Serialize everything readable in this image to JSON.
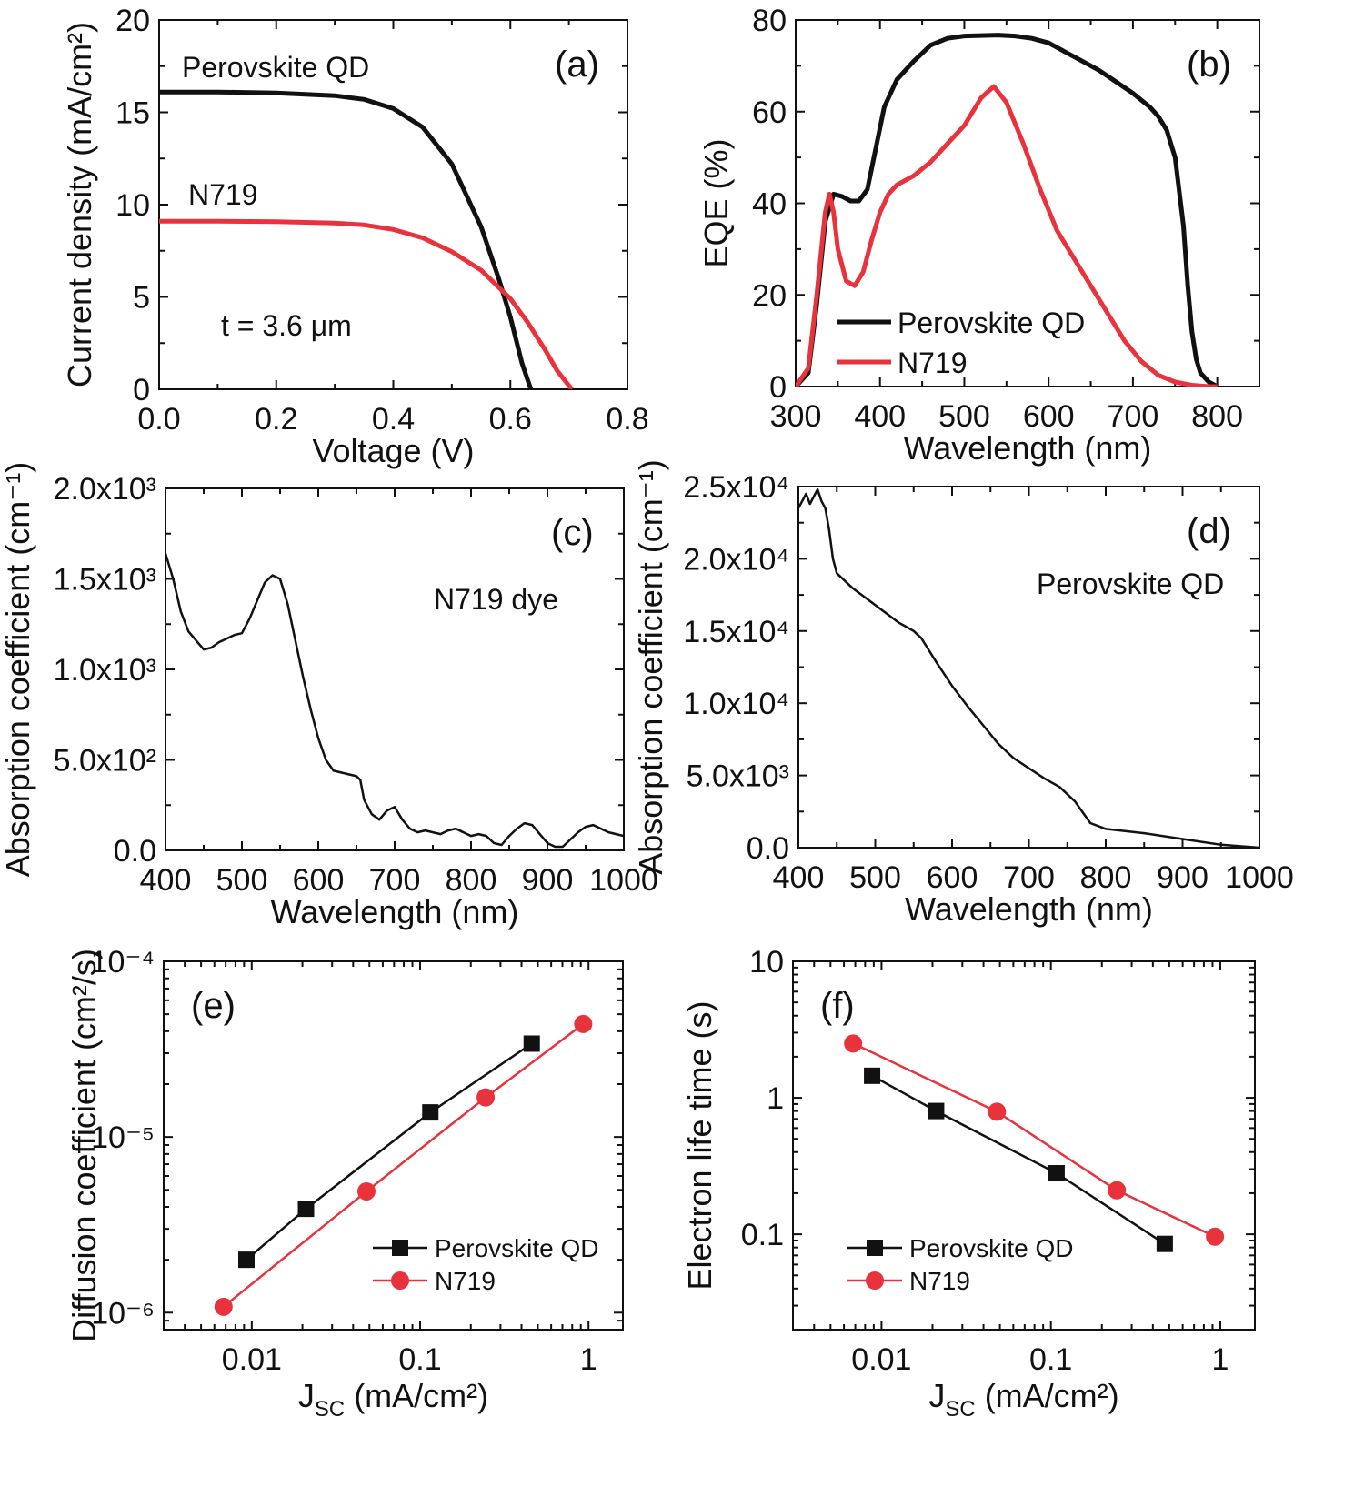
{
  "colors": {
    "black": "#111111",
    "red": "#e8333c",
    "frame": "#111111"
  },
  "chart_data": [
    {
      "id": "a",
      "type": "line",
      "panel_label": "(a)",
      "xlabel": "Voltage (V)",
      "ylabel": "Current density (mA/cm²)",
      "xlim": [
        0,
        0.8
      ],
      "ylim": [
        0,
        20
      ],
      "xticks": [
        "0.0",
        "0.2",
        "0.4",
        "0.6",
        "0.8"
      ],
      "yticks": [
        "0",
        "5",
        "10",
        "15",
        "20"
      ],
      "annotation": "t = 3.6 μm",
      "series": [
        {
          "name": "Perovskite QD",
          "color": "black",
          "x": [
            0,
            0.1,
            0.2,
            0.3,
            0.35,
            0.4,
            0.45,
            0.5,
            0.55,
            0.58,
            0.6,
            0.62,
            0.635
          ],
          "y": [
            16.1,
            16.1,
            16.05,
            15.9,
            15.7,
            15.2,
            14.2,
            12.2,
            8.8,
            6.0,
            3.9,
            1.4,
            0
          ]
        },
        {
          "name": "N719",
          "color": "red",
          "x": [
            0,
            0.1,
            0.2,
            0.3,
            0.35,
            0.4,
            0.45,
            0.5,
            0.55,
            0.6,
            0.63,
            0.66,
            0.68,
            0.705
          ],
          "y": [
            9.1,
            9.1,
            9.08,
            9.0,
            8.9,
            8.65,
            8.2,
            7.45,
            6.45,
            4.9,
            3.6,
            2.1,
            1.0,
            0
          ]
        }
      ]
    },
    {
      "id": "b",
      "type": "line",
      "panel_label": "(b)",
      "xlabel": "Wavelength (nm)",
      "ylabel": "EQE (%)",
      "xlim": [
        300,
        850
      ],
      "ylim": [
        0,
        80
      ],
      "xticks": [
        "300",
        "400",
        "500",
        "600",
        "700",
        "800"
      ],
      "yticks": [
        "0",
        "20",
        "40",
        "60",
        "80"
      ],
      "series": [
        {
          "name": "Perovskite QD",
          "color": "black",
          "x": [
            300,
            315,
            325,
            335,
            345,
            355,
            365,
            375,
            385,
            395,
            405,
            420,
            440,
            460,
            480,
            500,
            520,
            540,
            560,
            580,
            600,
            620,
            640,
            660,
            680,
            700,
            720,
            730,
            740,
            750,
            760,
            765,
            770,
            775,
            780,
            790,
            800
          ],
          "y": [
            0,
            3,
            18,
            36,
            42,
            41.5,
            40.5,
            40.5,
            43,
            52,
            61,
            67,
            71,
            74.5,
            76,
            76.5,
            76.6,
            76.7,
            76.5,
            76,
            75,
            73,
            71,
            69,
            66.5,
            64,
            61,
            59,
            56,
            50,
            35,
            22,
            12,
            6,
            3,
            1,
            0
          ]
        },
        {
          "name": "N719",
          "color": "red",
          "x": [
            300,
            315,
            325,
            335,
            340,
            345,
            350,
            360,
            370,
            380,
            390,
            400,
            410,
            420,
            440,
            460,
            480,
            500,
            520,
            535,
            550,
            570,
            590,
            610,
            630,
            650,
            670,
            690,
            710,
            730,
            750,
            770,
            790,
            800
          ],
          "y": [
            0,
            4,
            20,
            38,
            42,
            38,
            30,
            23,
            22,
            25,
            32,
            38,
            42,
            44,
            46,
            49,
            53,
            57,
            63,
            65.5,
            62,
            53,
            43,
            34,
            28,
            22,
            16,
            10,
            5.5,
            2.5,
            1,
            0.3,
            0,
            0
          ]
        }
      ]
    },
    {
      "id": "c",
      "type": "line",
      "panel_label": "(c)",
      "xlabel": "Wavelength (nm)",
      "ylabel": "Absorption coefficient (cm⁻¹)",
      "xlim": [
        400,
        1000
      ],
      "ylim": [
        0,
        2000
      ],
      "xticks": [
        "400",
        "500",
        "600",
        "700",
        "800",
        "900",
        "1000"
      ],
      "yticks": [
        "0.0",
        "5.0x10²",
        "1.0x10³",
        "1.5x10³",
        "2.0x10³"
      ],
      "annotation": "N719 dye",
      "series": [
        {
          "name": "N719 dye",
          "color": "black",
          "x": [
            400,
            410,
            420,
            430,
            440,
            450,
            460,
            470,
            480,
            490,
            500,
            510,
            520,
            530,
            540,
            550,
            560,
            570,
            580,
            590,
            600,
            610,
            620,
            630,
            640,
            650,
            655,
            660,
            670,
            680,
            690,
            700,
            710,
            720,
            730,
            740,
            750,
            760,
            770,
            780,
            790,
            800,
            810,
            820,
            830,
            840,
            850,
            860,
            870,
            880,
            890,
            900,
            910,
            920,
            930,
            940,
            950,
            960,
            970,
            980,
            990,
            1000
          ],
          "y": [
            1640,
            1500,
            1320,
            1210,
            1160,
            1110,
            1120,
            1150,
            1170,
            1190,
            1200,
            1280,
            1380,
            1480,
            1520,
            1500,
            1360,
            1160,
            960,
            780,
            620,
            500,
            440,
            430,
            420,
            410,
            390,
            280,
            200,
            170,
            220,
            240,
            170,
            120,
            100,
            110,
            100,
            90,
            110,
            120,
            100,
            80,
            90,
            80,
            40,
            30,
            80,
            120,
            150,
            140,
            90,
            40,
            20,
            20,
            60,
            100,
            130,
            140,
            120,
            100,
            90,
            80
          ]
        }
      ]
    },
    {
      "id": "d",
      "type": "line",
      "panel_label": "(d)",
      "xlabel": "Wavelength (nm)",
      "ylabel": "Absorption coefficient (cm⁻¹)",
      "xlim": [
        400,
        1000
      ],
      "ylim": [
        0,
        25000
      ],
      "xticks": [
        "400",
        "500",
        "600",
        "700",
        "800",
        "900",
        "1000"
      ],
      "yticks": [
        "0.0",
        "5.0x10³",
        "1.0x10⁴",
        "1.5x10⁴",
        "2.0x10⁴",
        "2.5x10⁴"
      ],
      "annotation": "Perovskite QD",
      "series": [
        {
          "name": "Perovskite QD",
          "color": "black",
          "x": [
            400,
            405,
            410,
            415,
            420,
            425,
            430,
            435,
            440,
            445,
            450,
            470,
            490,
            510,
            530,
            550,
            560,
            580,
            600,
            620,
            640,
            660,
            680,
            700,
            720,
            740,
            760,
            780,
            800,
            850,
            900,
            950,
            1000
          ],
          "y": [
            23500,
            24000,
            24500,
            23800,
            24300,
            24800,
            24000,
            23500,
            22000,
            20000,
            19000,
            18000,
            17200,
            16400,
            15600,
            15000,
            14500,
            12800,
            11200,
            9800,
            8500,
            7200,
            6200,
            5500,
            4800,
            4200,
            3200,
            1700,
            1300,
            1000,
            600,
            200,
            0
          ]
        }
      ]
    },
    {
      "id": "e",
      "type": "scatter",
      "panel_label": "(e)",
      "xlabel": "J_SC (mA/cm²)",
      "ylabel": "Diffusion coefficient (cm²/s)",
      "xscale": "log",
      "yscale": "log",
      "xlim": [
        0.003,
        1.6
      ],
      "ylim": [
        8e-07,
        0.0001
      ],
      "xticks": [
        "0.01",
        "0.1",
        "1"
      ],
      "xtick_values": [
        0.01,
        0.1,
        1
      ],
      "yticks": [
        "10⁻⁶",
        "10⁻⁵",
        "10⁻⁴"
      ],
      "ytick_values": [
        1e-06,
        1e-05,
        0.0001
      ],
      "legend_position": "bottom-right",
      "series": [
        {
          "name": "Perovskite QD",
          "color": "black",
          "marker": "square",
          "x": [
            0.0093,
            0.021,
            0.115,
            0.46
          ],
          "y": [
            2e-06,
            3.9e-06,
            1.38e-05,
            3.4e-05
          ]
        },
        {
          "name": "N719",
          "color": "red",
          "marker": "circle",
          "x": [
            0.0068,
            0.048,
            0.245,
            0.93
          ],
          "y": [
            1.08e-06,
            4.9e-06,
            1.68e-05,
            4.4e-05
          ]
        }
      ]
    },
    {
      "id": "f",
      "type": "scatter",
      "panel_label": "(f)",
      "xlabel": "J_SC (mA/cm²)",
      "ylabel": "Electron life time (s)",
      "xscale": "log",
      "yscale": "log",
      "xlim": [
        0.003,
        1.6
      ],
      "ylim": [
        0.02,
        10
      ],
      "xticks": [
        "0.01",
        "0.1",
        "1"
      ],
      "xtick_values": [
        0.01,
        0.1,
        1
      ],
      "yticks": [
        "0.1",
        "1",
        "10"
      ],
      "ytick_values": [
        0.1,
        1,
        10
      ],
      "legend_position": "bottom-left",
      "series": [
        {
          "name": "Perovskite QD",
          "color": "black",
          "marker": "square",
          "x": [
            0.0088,
            0.021,
            0.108,
            0.47
          ],
          "y": [
            1.45,
            0.8,
            0.28,
            0.085
          ]
        },
        {
          "name": "N719",
          "color": "red",
          "marker": "circle",
          "x": [
            0.0068,
            0.048,
            0.245,
            0.93
          ],
          "y": [
            2.5,
            0.79,
            0.21,
            0.096
          ]
        }
      ]
    }
  ]
}
